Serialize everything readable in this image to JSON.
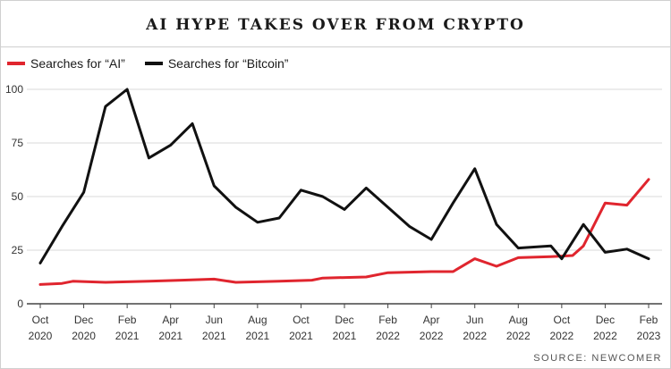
{
  "chart_data": {
    "type": "line",
    "title": "AI HYPE TAKES OVER FROM CRYPTO",
    "source": "SOURCE: NEWCOMER",
    "ylim": [
      0,
      100
    ],
    "yticks": [
      0,
      25,
      50,
      75,
      100
    ],
    "grid": true,
    "legend_position": "top-left",
    "xticks": [
      {
        "month": 0,
        "line1": "Oct",
        "line2": "2020"
      },
      {
        "month": 2,
        "line1": "Dec",
        "line2": "2020"
      },
      {
        "month": 4,
        "line1": "Feb",
        "line2": "2021"
      },
      {
        "month": 6,
        "line1": "Apr",
        "line2": "2021"
      },
      {
        "month": 8,
        "line1": "Jun",
        "line2": "2021"
      },
      {
        "month": 10,
        "line1": "Aug",
        "line2": "2021"
      },
      {
        "month": 12,
        "line1": "Oct",
        "line2": "2021"
      },
      {
        "month": 14,
        "line1": "Dec",
        "line2": "2021"
      },
      {
        "month": 16,
        "line1": "Feb",
        "line2": "2022"
      },
      {
        "month": 18,
        "line1": "Apr",
        "line2": "2022"
      },
      {
        "month": 20,
        "line1": "Jun",
        "line2": "2022"
      },
      {
        "month": 22,
        "line1": "Aug",
        "line2": "2022"
      },
      {
        "month": 24,
        "line1": "Oct",
        "line2": "2022"
      },
      {
        "month": 26,
        "line1": "Dec",
        "line2": "2022"
      },
      {
        "month": 28,
        "line1": "Feb",
        "line2": "2023"
      }
    ],
    "series": [
      {
        "name": "Searches for “AI”",
        "color": "#e0252e",
        "points": [
          [
            0,
            9
          ],
          [
            1,
            9.5
          ],
          [
            1.5,
            10.5
          ],
          [
            3,
            10
          ],
          [
            5,
            10.5
          ],
          [
            6.5,
            11
          ],
          [
            8,
            11.5
          ],
          [
            9,
            10
          ],
          [
            11,
            10.5
          ],
          [
            12.5,
            11
          ],
          [
            13,
            12
          ],
          [
            15,
            12.5
          ],
          [
            16,
            14.5
          ],
          [
            18,
            15
          ],
          [
            19,
            15
          ],
          [
            20,
            21
          ],
          [
            21,
            17.5
          ],
          [
            22,
            21.5
          ],
          [
            23.5,
            22
          ],
          [
            24.5,
            22.5
          ],
          [
            25,
            27
          ],
          [
            26,
            47
          ],
          [
            27,
            46
          ],
          [
            28,
            58
          ]
        ]
      },
      {
        "name": "Searches for “Bitcoin”",
        "color": "#111111",
        "points": [
          [
            0,
            19
          ],
          [
            1,
            36
          ],
          [
            2,
            52
          ],
          [
            3,
            92
          ],
          [
            4,
            100
          ],
          [
            5,
            68
          ],
          [
            6,
            74
          ],
          [
            7,
            84
          ],
          [
            8,
            55
          ],
          [
            9,
            45
          ],
          [
            10,
            38
          ],
          [
            11,
            40
          ],
          [
            12,
            53
          ],
          [
            13,
            50
          ],
          [
            14,
            44
          ],
          [
            15,
            54
          ],
          [
            16,
            45
          ],
          [
            17,
            36
          ],
          [
            18,
            30
          ],
          [
            19,
            47
          ],
          [
            20,
            63
          ],
          [
            21,
            37
          ],
          [
            22,
            26
          ],
          [
            23.5,
            27
          ],
          [
            24,
            21
          ],
          [
            25,
            37
          ],
          [
            26,
            24
          ],
          [
            27,
            25.5
          ],
          [
            28,
            21
          ]
        ]
      }
    ]
  }
}
